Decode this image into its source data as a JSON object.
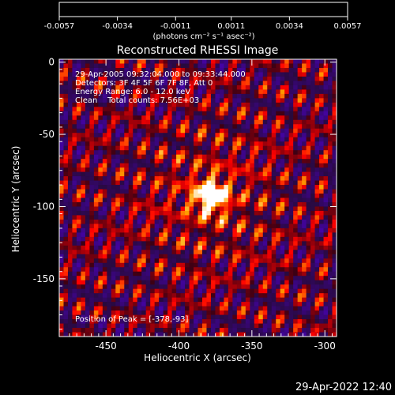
{
  "colorbar": {
    "ticks": [
      "-0.0057",
      "-0.0034",
      "-0.0011",
      "0.0011",
      "0.0034",
      "0.0057"
    ],
    "unit_label": "(photons cm⁻² s⁻¹ asec⁻²)"
  },
  "annotations": {
    "time": "29-Apr-2005 09:32:04.000 to 09:33:44.000",
    "detectors": "Detectors: 3F 4F 5F 6F 7F 8F, Att 0",
    "energy": "Energy Range: 6.0 - 12.0 keV",
    "clean": "Clean    Total counts: 7.56E+03",
    "peak": "Position of Peak = [-378,-93]"
  },
  "footer": {
    "timestamp": "29-Apr-2022 12:40"
  },
  "chart_data": {
    "type": "heatmap",
    "title": "Reconstructed RHESSI Image",
    "xlabel": "Heliocentric X (arcsec)",
    "ylabel": "Heliocentric Y (arcsec)",
    "xlim": [
      -482,
      -292
    ],
    "ylim": [
      -190,
      2
    ],
    "x_ticks": [
      "-450",
      "-400",
      "-350",
      "-300"
    ],
    "y_ticks": [
      "0",
      "-50",
      "-100",
      "-150"
    ],
    "x_tick_values": [
      -450,
      -400,
      -350,
      -300
    ],
    "y_tick_values": [
      0,
      -50,
      -100,
      -150
    ],
    "colorbar_range": [
      -0.0057,
      0.0057
    ],
    "colormap": "hot-with-blue-purple-negative",
    "peak": {
      "x": -378,
      "y": -93
    }
  }
}
